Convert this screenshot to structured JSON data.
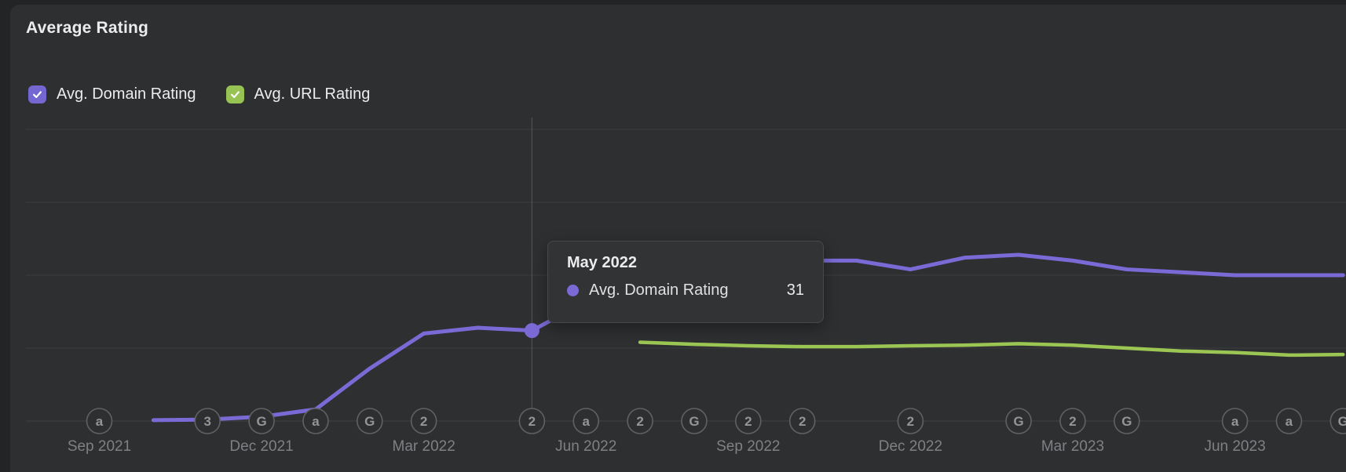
{
  "panel": {
    "title": "Average Rating"
  },
  "legend": {
    "items": [
      {
        "label": "Avg. Domain Rating",
        "checked": true,
        "color": "#7567d1"
      },
      {
        "label": "Avg. URL Rating",
        "checked": true,
        "color": "#97c353"
      }
    ]
  },
  "tooltip": {
    "title": "May 2022",
    "rows": [
      {
        "label": "Avg. Domain Rating",
        "value": "31",
        "marker_color": "#7b6ad6"
      }
    ]
  },
  "chart_data": {
    "type": "line",
    "title": "Average Rating",
    "x": [
      "Sep 2021",
      "Oct 2021",
      "Nov 2021",
      "Dec 2021",
      "Jan 2022",
      "Feb 2022",
      "Mar 2022",
      "Apr 2022",
      "May 2022",
      "Jun 2022",
      "Jul 2022",
      "Aug 2022",
      "Sep 2022",
      "Oct 2022",
      "Nov 2022",
      "Dec 2022",
      "Jan 2023",
      "Feb 2023",
      "Mar 2023",
      "Apr 2023",
      "May 2023",
      "Jun 2023",
      "Jul 2023",
      "Aug 2023"
    ],
    "series": [
      {
        "name": "Avg. Domain Rating",
        "color": "#7b6ad6",
        "values": [
          null,
          0.3,
          0.5,
          1.5,
          4,
          18,
          30,
          32,
          31,
          41,
          50,
          54,
          55,
          55,
          55,
          52,
          56,
          57,
          55,
          52,
          51,
          50,
          50,
          50
        ]
      },
      {
        "name": "Avg. URL Rating",
        "color": "#9cc653",
        "values": [
          null,
          null,
          null,
          null,
          null,
          null,
          null,
          null,
          null,
          null,
          27,
          26.3,
          25.8,
          25.5,
          25.5,
          25.8,
          26,
          26.5,
          26,
          25,
          24,
          23.5,
          22.6,
          22.8
        ]
      }
    ],
    "ylim": [
      0,
      100
    ],
    "gridline_values": [
      0,
      25,
      50,
      75,
      100
    ],
    "y_tick_labels_visible": false,
    "grid": true,
    "legend_position": "top-left",
    "x_tick_labels": [
      "Sep 2021",
      "Dec 2021",
      "Mar 2022",
      "Jun 2022",
      "Sep 2022",
      "Dec 2022",
      "Mar 2023",
      "Jun 2023"
    ],
    "axis_markers": [
      {
        "x": "Sep 2021",
        "glyph": "a"
      },
      {
        "x": "Nov 2021",
        "glyph": "3"
      },
      {
        "x": "Dec 2021",
        "glyph": "G"
      },
      {
        "x": "Jan 2022",
        "glyph": "a"
      },
      {
        "x": "Feb 2022",
        "glyph": "G"
      },
      {
        "x": "Mar 2022",
        "glyph": "2"
      },
      {
        "x": "May 2022",
        "glyph": "2"
      },
      {
        "x": "Jun 2022",
        "glyph": "a"
      },
      {
        "x": "Jul 2022",
        "glyph": "2"
      },
      {
        "x": "Aug 2022",
        "glyph": "G"
      },
      {
        "x": "Sep 2022",
        "glyph": "2"
      },
      {
        "x": "Oct 2022",
        "glyph": "2"
      },
      {
        "x": "Dec 2022",
        "glyph": "2"
      },
      {
        "x": "Feb 2023",
        "glyph": "G"
      },
      {
        "x": "Mar 2023",
        "glyph": "2"
      },
      {
        "x": "Apr 2023",
        "glyph": "G"
      },
      {
        "x": "Jun 2023",
        "glyph": "a"
      },
      {
        "x": "Jul 2023",
        "glyph": "a"
      },
      {
        "x": "Aug 2023",
        "glyph": "G"
      }
    ],
    "hover": {
      "x": "May 2022",
      "series": "Avg. Domain Rating",
      "value": 31
    }
  },
  "colors": {
    "page_bg": "#232426",
    "panel_bg": "#2d2f31",
    "text_primary": "#ebecee",
    "gridline": "#3c3d3f",
    "axis_line": "#414244",
    "crosshair": "#505156",
    "tick_text": "#7f8083",
    "marker_circle_stroke": "#606163",
    "marker_glyph": "#949597",
    "tooltip_bg": "#313335",
    "tooltip_border": "#48494c"
  }
}
